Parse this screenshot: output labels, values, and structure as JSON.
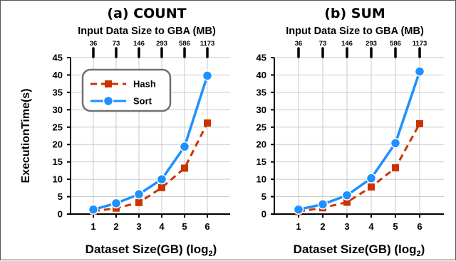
{
  "figure": {
    "ylabel": "ExecutionTime(s)"
  },
  "colors": {
    "hash": "#cc3300",
    "sort": "#1e90ff",
    "grid": "#c8c8c8"
  },
  "chart_data": [
    {
      "type": "line",
      "title": "(a) COUNT",
      "xlabel": "Dataset Size(GB) (log",
      "xlabel_sub": "2",
      "xlabel_close": ")",
      "ylabel": "ExecutionTime(s)",
      "top_axis_label": "Input Data Size to GBA (MB)",
      "top_ticks": [
        "36",
        "73",
        "146",
        "293",
        "586",
        "1173"
      ],
      "x": [
        1,
        2,
        3,
        4,
        5,
        6
      ],
      "xlim": [
        0,
        7
      ],
      "ylim": [
        0,
        45
      ],
      "yticks": [
        0,
        5,
        10,
        15,
        20,
        25,
        30,
        35,
        40,
        45
      ],
      "grid": true,
      "legend_position": "top-left",
      "series": [
        {
          "name": "Hash",
          "style": "dashed-square",
          "values": [
            0.8,
            1.7,
            3.3,
            7.6,
            13.2,
            26.2
          ]
        },
        {
          "name": "Sort",
          "style": "solid-circle",
          "values": [
            1.3,
            3.1,
            5.7,
            10.0,
            19.4,
            39.8
          ]
        }
      ]
    },
    {
      "type": "line",
      "title": "(b) SUM",
      "xlabel": "Dataset Size(GB) (log",
      "xlabel_sub": "2",
      "xlabel_close": ")",
      "ylabel": "",
      "top_axis_label": "Input Data Size to GBA (MB)",
      "top_ticks": [
        "36",
        "73",
        "146",
        "293",
        "586",
        "1173"
      ],
      "x": [
        1,
        2,
        3,
        4,
        5,
        6
      ],
      "xlim": [
        0,
        7
      ],
      "ylim": [
        0,
        45
      ],
      "yticks": [
        0,
        5,
        10,
        15,
        20,
        25,
        30,
        35,
        40,
        45
      ],
      "grid": true,
      "legend_position": "none",
      "series": [
        {
          "name": "Hash",
          "style": "dashed-square",
          "values": [
            0.7,
            1.8,
            3.4,
            7.8,
            13.3,
            26.0
          ]
        },
        {
          "name": "Sort",
          "style": "solid-circle",
          "values": [
            1.3,
            2.8,
            5.4,
            10.3,
            20.4,
            41.0
          ]
        }
      ]
    }
  ]
}
